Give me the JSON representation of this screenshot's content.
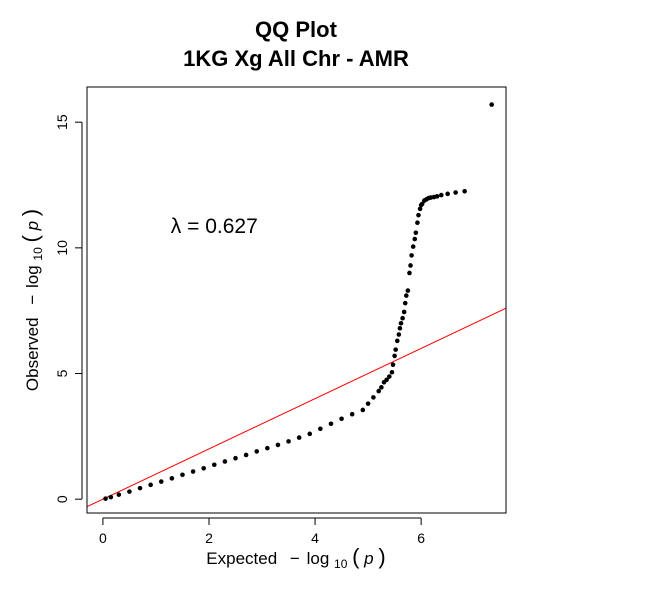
{
  "chart_data": {
    "type": "scatter",
    "title": "QQ Plot",
    "subtitle": "1KG Xg All Chr - AMR",
    "xlabel": {
      "prefix": "Expected",
      "minus": "−",
      "log": "log",
      "base": "10",
      "open": "(",
      "var": "p",
      "close": ")"
    },
    "ylabel": {
      "prefix": "Observed",
      "minus": "−",
      "log": "log",
      "base": "10",
      "open": "(",
      "var": "p",
      "close": ")"
    },
    "xlim": [
      -0.3,
      7.6
    ],
    "ylim": [
      -0.55,
      16.4
    ],
    "x_ticks": [
      0,
      2,
      4,
      6
    ],
    "y_ticks": [
      0,
      5,
      10,
      15
    ],
    "x_tick_labels": [
      "0",
      "2",
      "4",
      "6"
    ],
    "y_tick_labels": [
      "0",
      "5",
      "10",
      "15"
    ],
    "grid": false,
    "annotation": "λ = 0.627",
    "annotation_position": [
      2.1,
      10.6
    ],
    "reference_line": {
      "from": [
        -0.3,
        -0.3
      ],
      "to": [
        7.6,
        7.6
      ],
      "color": "#ff0000"
    },
    "series": [
      {
        "color": "#000000",
        "x": [
          0.05,
          0.15,
          0.3,
          0.5,
          0.7,
          0.9,
          1.1,
          1.3,
          1.5,
          1.7,
          1.9,
          2.1,
          2.3,
          2.5,
          2.7,
          2.9,
          3.1,
          3.3,
          3.5,
          3.7,
          3.9,
          4.1,
          4.3,
          4.5,
          4.7,
          4.9,
          5.0,
          5.1,
          5.2,
          5.25,
          5.3,
          5.35,
          5.4,
          5.45,
          5.47,
          5.5,
          5.52,
          5.55,
          5.58,
          5.6,
          5.62,
          5.65,
          5.68,
          5.7,
          5.72,
          5.75,
          5.78,
          5.8,
          5.82,
          5.85,
          5.88,
          5.9,
          5.93,
          5.95,
          5.98,
          6.0,
          6.02,
          6.06,
          6.1,
          6.14,
          6.18,
          6.24,
          6.3,
          6.38,
          6.5,
          6.65,
          6.82,
          7.33
        ],
        "y": [
          0.02,
          0.08,
          0.18,
          0.3,
          0.44,
          0.57,
          0.7,
          0.83,
          0.97,
          1.1,
          1.23,
          1.37,
          1.5,
          1.63,
          1.76,
          1.9,
          2.03,
          2.16,
          2.3,
          2.45,
          2.6,
          2.8,
          3.0,
          3.2,
          3.38,
          3.55,
          3.8,
          4.05,
          4.3,
          4.45,
          4.65,
          4.75,
          4.88,
          5.05,
          5.35,
          5.7,
          5.95,
          6.3,
          6.55,
          6.8,
          7.0,
          7.2,
          7.45,
          7.8,
          8.1,
          8.3,
          9.0,
          9.3,
          9.7,
          10.05,
          10.35,
          10.6,
          11.0,
          11.3,
          11.55,
          11.7,
          11.75,
          11.88,
          11.93,
          11.98,
          12.0,
          12.02,
          12.05,
          12.1,
          12.15,
          12.2,
          12.25,
          15.7
        ]
      }
    ]
  }
}
